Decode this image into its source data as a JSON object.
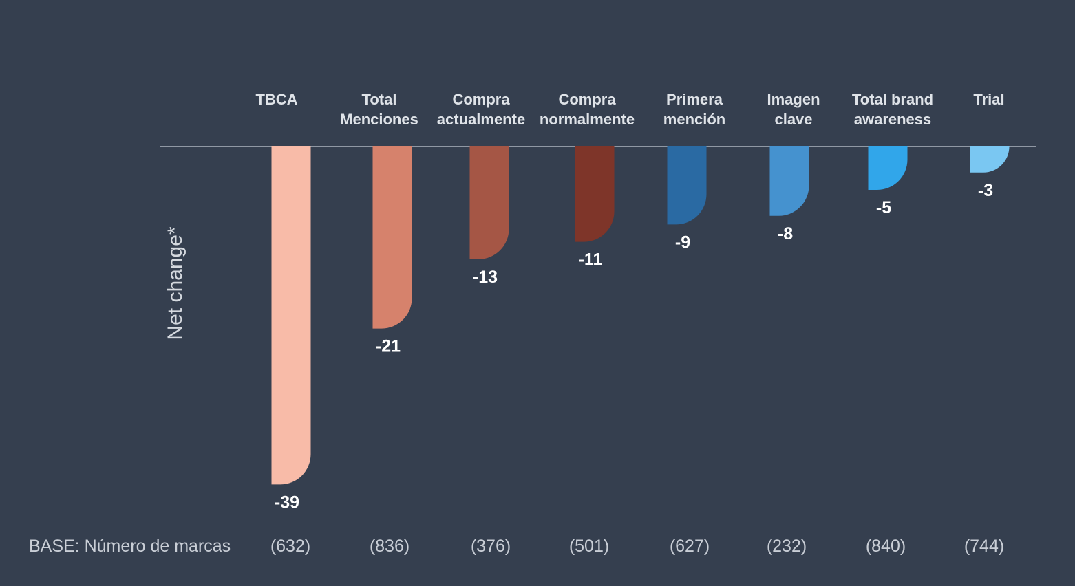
{
  "chart_data": {
    "type": "bar",
    "orientation": "vertical-negative",
    "title": "",
    "xlabel": "",
    "ylabel": "Net change*",
    "ylim": [
      -39,
      0
    ],
    "grid": false,
    "legend": "none",
    "categories": [
      [
        "TBCA"
      ],
      [
        "Total",
        "Menciones"
      ],
      [
        "Compra",
        "actualmente"
      ],
      [
        "Compra",
        "normalmente"
      ],
      [
        "Primera",
        "mención"
      ],
      [
        "Imagen",
        "clave"
      ],
      [
        "Total brand",
        "awareness"
      ],
      [
        "Trial"
      ]
    ],
    "values": [
      -39,
      -21,
      -13,
      -11,
      -9,
      -8,
      -5,
      -3
    ],
    "value_labels": [
      "-39",
      "-21",
      "-13",
      "-11",
      "-9",
      "-8",
      "-5",
      "-3"
    ],
    "colors": [
      "#f8bba8",
      "#d6826c",
      "#a55645",
      "#7e3529",
      "#2a6aa3",
      "#4592cf",
      "#31a6ea",
      "#7ac7f2"
    ],
    "base": {
      "title": "BASE: Número de marcas",
      "values": [
        "(632)",
        "(836)",
        "(376)",
        "(501)",
        "(627)",
        "(232)",
        "(840)",
        "(744)"
      ]
    }
  }
}
